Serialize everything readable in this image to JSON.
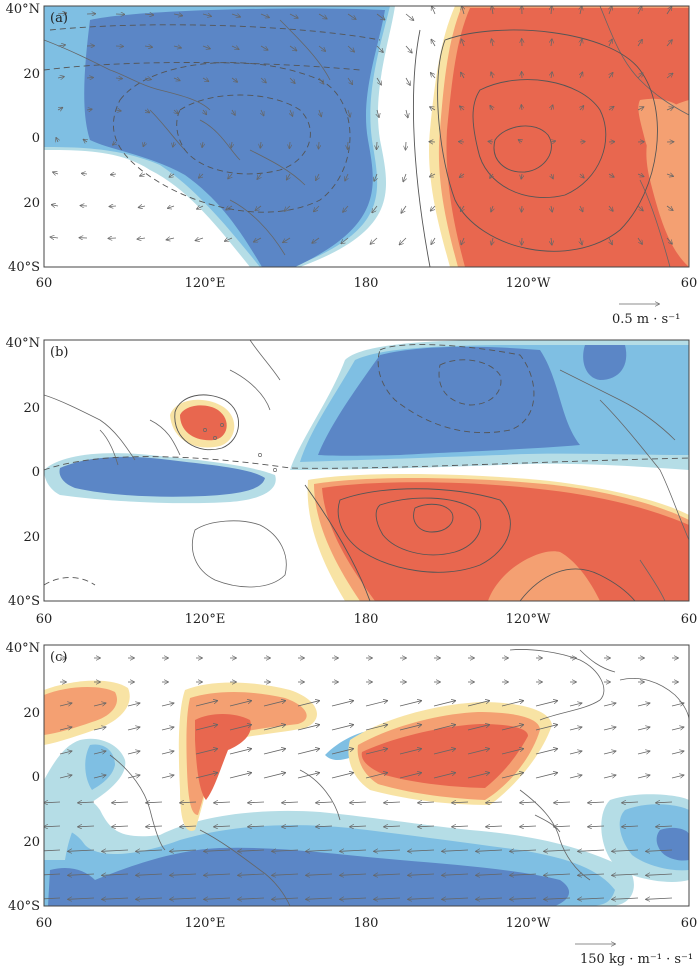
{
  "colors": {
    "blue_dark": "#5b86c6",
    "blue_mid": "#7fbfe3",
    "blue_light": "#b5dde6",
    "red_dark": "#e8674f",
    "red_mid": "#f4a072",
    "yellow_light": "#f8e3a4",
    "coast": "#666666",
    "contour": "#555555",
    "vector": "#666666"
  },
  "axes": {
    "x_ticks": [
      "60",
      "120°E",
      "180",
      "120°W",
      "60"
    ],
    "y_ticks": [
      "40°N",
      "20",
      "0",
      "20",
      "40°S"
    ]
  },
  "panels": [
    {
      "label": "(a)",
      "reference_vector": "0.5 m · s⁻¹",
      "fields": [
        "shaded anomaly",
        "contours",
        "wind vectors"
      ]
    },
    {
      "label": "(b)",
      "fields": [
        "shaded anomaly",
        "contours"
      ]
    },
    {
      "label": "(c)",
      "reference_vector": "150 kg · m⁻¹ · s⁻¹",
      "fields": [
        "shaded anomaly",
        "flux vectors"
      ]
    }
  ]
}
